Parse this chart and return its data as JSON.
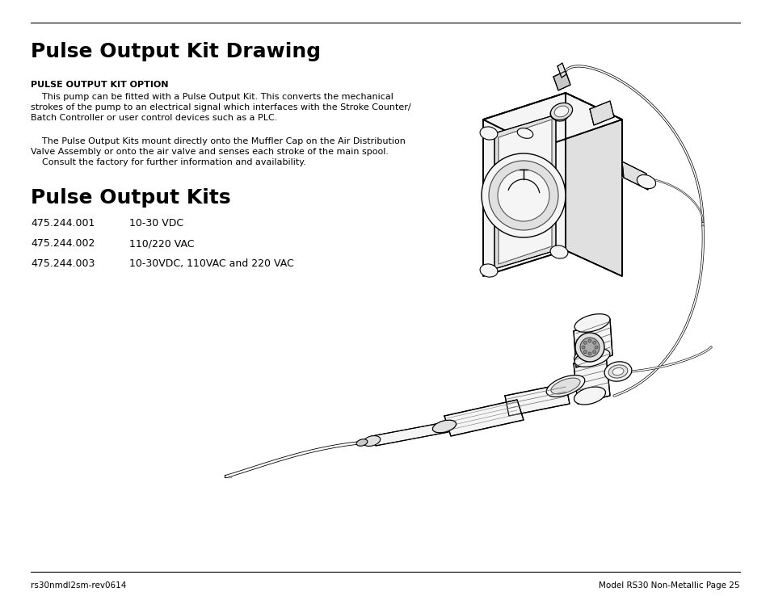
{
  "title": "Pulse Output Kit Drawing",
  "subtitle_bold": "PULSE OUTPUT KIT OPTION",
  "paragraph1": "    This pump can be fitted with a Pulse Output Kit. This converts the mechanical\nstrokes of the pump to an electrical signal which interfaces with the Stroke Counter/\nBatch Controller or user control devices such as a PLC.",
  "paragraph2": "    The Pulse Output Kits mount directly onto the Muffler Cap on the Air Distribution\nValve Assembly or onto the air valve and senses each stroke of the main spool.\n    Consult the factory for further information and availability.",
  "section2_title": "Pulse Output Kits",
  "table_rows": [
    [
      "475.244.001",
      "10-30 VDC"
    ],
    [
      "475.244.002",
      "110/220 VAC"
    ],
    [
      "475.244.003",
      "10-30VDC, 110VAC and 220 VAC"
    ]
  ],
  "footer_left": "rs30nmdl2sm-rev0614",
  "footer_right": "Model RS30 Non-Metallic Page 25",
  "bg_color": "#ffffff",
  "text_color": "#000000",
  "title_fontsize": 18,
  "section2_fontsize": 18,
  "body_fontsize": 8.5,
  "table_fontsize": 9,
  "footer_fontsize": 7.5
}
